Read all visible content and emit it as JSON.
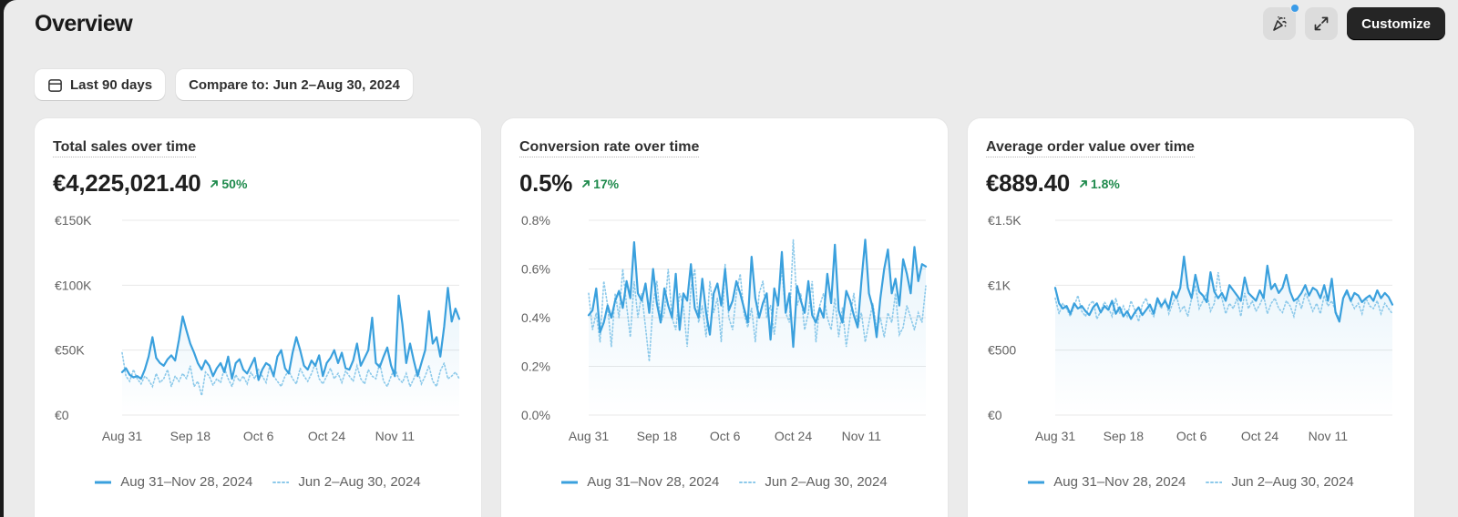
{
  "page": {
    "title": "Overview"
  },
  "header_actions": {
    "customize_label": "Customize",
    "has_notification": true
  },
  "filters": {
    "date_range": "Last 90 days",
    "compare": "Compare to: Jun 2–Aug 30, 2024"
  },
  "colors": {
    "current_series": "#3aa0dd",
    "previous_series": "#8cc9ea",
    "positive_change": "#1e8a4c",
    "primary_button": "#252525",
    "notification_dot": "#3a9be8"
  },
  "legend": {
    "current": "Aug 31–Nov 28, 2024",
    "previous": "Jun 2–Aug 30, 2024"
  },
  "cards": [
    {
      "title": "Total sales over time",
      "value": "€4,225,021.40",
      "change": "50%",
      "change_direction": "up"
    },
    {
      "title": "Conversion rate over time",
      "value": "0.5%",
      "change": "17%",
      "change_direction": "up"
    },
    {
      "title": "Average order value over time",
      "value": "€889.40",
      "change": "1.8%",
      "change_direction": "up"
    }
  ],
  "chart_data": [
    {
      "type": "line",
      "title": "Total sales over time",
      "xlabel": "",
      "ylabel": "",
      "x_ticks": [
        "Aug 31",
        "Sep 18",
        "Oct 6",
        "Oct 24",
        "Nov 11"
      ],
      "y_ticks": [
        "€0",
        "€50K",
        "€100K",
        "€150K"
      ],
      "ylim": [
        0,
        150000
      ],
      "grid": true,
      "legend_position": "bottom",
      "series": [
        {
          "name": "Aug 31–Nov 28, 2024",
          "style": "solid",
          "values": [
            33000,
            36000,
            31000,
            29000,
            30000,
            28000,
            35000,
            45000,
            60000,
            44000,
            40000,
            38000,
            43000,
            46000,
            42000,
            58000,
            76000,
            65000,
            55000,
            48000,
            40000,
            35000,
            42000,
            38000,
            30000,
            36000,
            40000,
            33000,
            45000,
            28000,
            40000,
            43000,
            35000,
            32000,
            38000,
            44000,
            27000,
            35000,
            40000,
            38000,
            30000,
            45000,
            50000,
            36000,
            32000,
            48000,
            60000,
            50000,
            38000,
            35000,
            42000,
            38000,
            46000,
            30000,
            40000,
            44000,
            50000,
            40000,
            48000,
            36000,
            35000,
            42000,
            55000,
            38000,
            44000,
            50000,
            75000,
            40000,
            37000,
            45000,
            52000,
            38000,
            30000,
            92000,
            70000,
            40000,
            55000,
            42000,
            30000,
            40000,
            50000,
            80000,
            55000,
            60000,
            45000,
            68000,
            98000,
            72000,
            82000,
            74000
          ]
        },
        {
          "name": "Jun 2–Aug 30, 2024",
          "style": "dotted",
          "values": [
            48000,
            30000,
            26000,
            35000,
            28000,
            24000,
            30000,
            27000,
            22000,
            32000,
            25000,
            28000,
            35000,
            22000,
            30000,
            26000,
            32000,
            28000,
            38000,
            22000,
            26000,
            15000,
            33000,
            30000,
            23000,
            28000,
            25000,
            36000,
            28000,
            22000,
            31000,
            26000,
            30000,
            24000,
            33000,
            28000,
            35000,
            30000,
            25000,
            38000,
            30000,
            26000,
            22000,
            30000,
            34000,
            28000,
            24000,
            36000,
            30000,
            26000,
            32000,
            40000,
            28000,
            24000,
            30000,
            36000,
            28000,
            32000,
            25000,
            34000,
            30000,
            26000,
            38000,
            28000,
            24000,
            35000,
            30000,
            28000,
            40000,
            26000,
            22000,
            30000,
            36000,
            28000,
            25000,
            32000,
            22000,
            28000,
            35000,
            24000,
            30000,
            38000,
            26000,
            22000,
            34000,
            40000,
            28000,
            30000,
            33000,
            28000
          ]
        }
      ]
    },
    {
      "type": "line",
      "title": "Conversion rate over time",
      "xlabel": "",
      "ylabel": "",
      "x_ticks": [
        "Aug 31",
        "Sep 18",
        "Oct 6",
        "Oct 24",
        "Nov 11"
      ],
      "y_ticks": [
        "0.0%",
        "0.2%",
        "0.4%",
        "0.6%",
        "0.8%"
      ],
      "ylim": [
        0,
        0.8
      ],
      "grid": true,
      "legend_position": "bottom",
      "series": [
        {
          "name": "Aug 31–Nov 28, 2024",
          "style": "solid",
          "values": [
            0.41,
            0.43,
            0.52,
            0.34,
            0.38,
            0.45,
            0.4,
            0.47,
            0.51,
            0.44,
            0.55,
            0.48,
            0.71,
            0.5,
            0.47,
            0.54,
            0.42,
            0.6,
            0.46,
            0.38,
            0.52,
            0.45,
            0.4,
            0.58,
            0.35,
            0.5,
            0.47,
            0.62,
            0.44,
            0.4,
            0.56,
            0.42,
            0.33,
            0.5,
            0.54,
            0.45,
            0.6,
            0.43,
            0.47,
            0.55,
            0.5,
            0.44,
            0.38,
            0.65,
            0.48,
            0.4,
            0.46,
            0.5,
            0.31,
            0.52,
            0.45,
            0.67,
            0.42,
            0.5,
            0.28,
            0.53,
            0.47,
            0.42,
            0.55,
            0.41,
            0.38,
            0.44,
            0.4,
            0.58,
            0.46,
            0.7,
            0.43,
            0.38,
            0.51,
            0.47,
            0.41,
            0.36,
            0.55,
            0.72,
            0.5,
            0.44,
            0.32,
            0.48,
            0.6,
            0.68,
            0.5,
            0.56,
            0.45,
            0.64,
            0.58,
            0.5,
            0.69,
            0.55,
            0.62,
            0.61
          ]
        },
        {
          "name": "Jun 2–Aug 30, 2024",
          "style": "dotted",
          "values": [
            0.5,
            0.35,
            0.42,
            0.3,
            0.55,
            0.45,
            0.28,
            0.5,
            0.4,
            0.6,
            0.45,
            0.32,
            0.55,
            0.4,
            0.5,
            0.36,
            0.22,
            0.46,
            0.55,
            0.38,
            0.42,
            0.6,
            0.4,
            0.35,
            0.5,
            0.45,
            0.28,
            0.52,
            0.6,
            0.38,
            0.45,
            0.32,
            0.55,
            0.42,
            0.48,
            0.3,
            0.62,
            0.4,
            0.35,
            0.5,
            0.58,
            0.42,
            0.36,
            0.44,
            0.3,
            0.5,
            0.55,
            0.4,
            0.45,
            0.33,
            0.48,
            0.6,
            0.42,
            0.38,
            0.72,
            0.45,
            0.5,
            0.35,
            0.42,
            0.55,
            0.3,
            0.45,
            0.5,
            0.4,
            0.35,
            0.48,
            0.32,
            0.44,
            0.28,
            0.4,
            0.5,
            0.36,
            0.42,
            0.3,
            0.38,
            0.46,
            0.35,
            0.4,
            0.32,
            0.42,
            0.38,
            0.5,
            0.33,
            0.36,
            0.45,
            0.4,
            0.35,
            0.42,
            0.38,
            0.53
          ]
        }
      ]
    },
    {
      "type": "line",
      "title": "Average order value over time",
      "xlabel": "",
      "ylabel": "",
      "x_ticks": [
        "Aug 31",
        "Sep 18",
        "Oct 6",
        "Oct 24",
        "Nov 11"
      ],
      "y_ticks": [
        "€0",
        "€500",
        "€1K",
        "€1.5K"
      ],
      "ylim": [
        0,
        1500
      ],
      "grid": true,
      "legend_position": "bottom",
      "series": [
        {
          "name": "Aug 31–Nov 28, 2024",
          "style": "solid",
          "values": [
            980,
            860,
            820,
            840,
            780,
            860,
            820,
            840,
            800,
            770,
            830,
            860,
            790,
            840,
            810,
            880,
            780,
            830,
            760,
            800,
            740,
            790,
            830,
            770,
            810,
            850,
            780,
            900,
            840,
            880,
            820,
            950,
            900,
            980,
            1220,
            980,
            900,
            1080,
            950,
            920,
            870,
            1100,
            950,
            900,
            940,
            880,
            1000,
            960,
            920,
            880,
            1060,
            940,
            910,
            880,
            960,
            900,
            1150,
            970,
            1010,
            940,
            980,
            1080,
            950,
            880,
            900,
            940,
            1000,
            920,
            980,
            960,
            900,
            1000,
            880,
            1050,
            790,
            720,
            900,
            960,
            880,
            940,
            920,
            870,
            900,
            920,
            880,
            960,
            900,
            940,
            910,
            850
          ]
        },
        {
          "name": "Jun 2–Aug 30, 2024",
          "style": "dotted",
          "values": [
            900,
            780,
            860,
            820,
            760,
            840,
            920,
            800,
            760,
            850,
            880,
            740,
            800,
            870,
            830,
            760,
            900,
            780,
            840,
            760,
            880,
            810,
            720,
            850,
            900,
            800,
            760,
            880,
            820,
            900,
            780,
            860,
            920,
            800,
            840,
            760,
            900,
            1000,
            820,
            880,
            940,
            800,
            860,
            1100,
            900,
            780,
            860,
            820,
            900,
            760,
            940,
            820,
            880,
            800,
            850,
            920,
            780,
            860,
            900,
            820,
            790,
            880,
            840,
            760,
            900,
            820,
            940,
            880,
            800,
            860,
            780,
            920,
            840,
            880,
            800,
            740,
            900,
            940,
            880,
            820,
            860,
            780,
            900,
            840,
            820,
            880,
            780,
            860,
            820,
            780
          ]
        }
      ]
    }
  ]
}
